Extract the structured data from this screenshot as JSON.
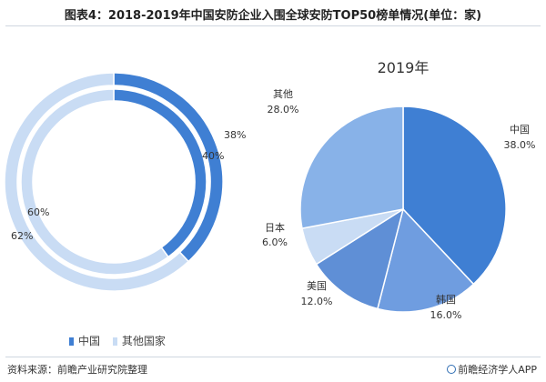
{
  "title": "图表4：2018-2019年中国安防企业入围全球安防TOP50榜单情况(单位：家)",
  "footer": {
    "source": "资料来源：前瞻产业研究院整理",
    "brand": "前瞻经济学人APP"
  },
  "legend": [
    {
      "label": "中国",
      "color": "#3f7fd3"
    },
    {
      "label": "其他国家",
      "color": "#c9dcf4"
    }
  ],
  "chart_data": [
    {
      "type": "pie",
      "subtype": "nested-donut",
      "title": "",
      "rings": [
        {
          "name": "",
          "ring": "outer",
          "values": [
            {
              "category": "中国",
              "value": 38,
              "label": "38%"
            },
            {
              "category": "其他国家",
              "value": 62,
              "label": "62%"
            }
          ]
        },
        {
          "name": "",
          "ring": "inner",
          "values": [
            {
              "category": "中国",
              "value": 40,
              "label": "40%"
            },
            {
              "category": "其他国家",
              "value": 60,
              "label": "60%"
            }
          ]
        }
      ]
    },
    {
      "type": "pie",
      "title": "2019年",
      "slices": [
        {
          "label": "中国",
          "value": 38.0,
          "value_label": "38.0%",
          "color": "#3f7fd3"
        },
        {
          "label": "韩国",
          "value": 16.0,
          "value_label": "16.0%",
          "color": "#6f9de0"
        },
        {
          "label": "美国",
          "value": 12.0,
          "value_label": "12.0%",
          "color": "#5f8fd6"
        },
        {
          "label": "日本",
          "value": 6.0,
          "value_label": "6.0%",
          "color": "#c9dcf4"
        },
        {
          "label": "其他",
          "value": 28.0,
          "value_label": "28.0%",
          "color": "#88b2e8"
        }
      ]
    }
  ]
}
